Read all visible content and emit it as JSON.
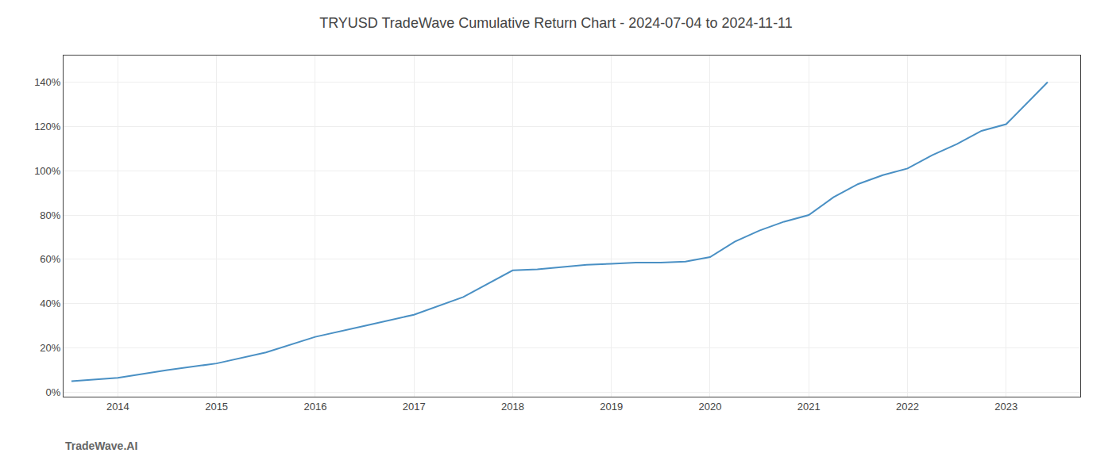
{
  "chart_data": {
    "type": "line",
    "title": "TRYUSD TradeWave Cumulative Return Chart - 2024-07-04 to 2024-11-11",
    "annotations": [
      {
        "text": "TradeWave.AI"
      }
    ],
    "x": [
      2013.53,
      2014.0,
      2014.5,
      2015.0,
      2015.5,
      2016.0,
      2016.5,
      2017.0,
      2017.5,
      2018.0,
      2018.25,
      2018.5,
      2018.75,
      2019.0,
      2019.25,
      2019.5,
      2019.75,
      2020.0,
      2020.25,
      2020.5,
      2020.75,
      2021.0,
      2021.25,
      2021.5,
      2021.75,
      2022.0,
      2022.25,
      2022.5,
      2022.75,
      2023.0,
      2023.42
    ],
    "values": [
      0.05,
      0.065,
      0.1,
      0.13,
      0.18,
      0.25,
      0.3,
      0.35,
      0.43,
      0.55,
      0.555,
      0.565,
      0.575,
      0.58,
      0.585,
      0.585,
      0.59,
      0.61,
      0.68,
      0.73,
      0.77,
      0.8,
      0.88,
      0.94,
      0.98,
      1.01,
      1.07,
      1.12,
      1.18,
      1.21,
      1.4
    ],
    "color": "#4a90c4",
    "xlim": [
      2013.45,
      2023.75
    ],
    "xticks": [
      2014,
      2015,
      2016,
      2017,
      2018,
      2019,
      2020,
      2021,
      2022,
      2023
    ],
    "ylim": [
      -0.02,
      1.52
    ],
    "yticks": [
      {
        "value": 0.0,
        "label": "0%"
      },
      {
        "value": 0.2,
        "label": "20%"
      },
      {
        "value": 0.4,
        "label": "40%"
      },
      {
        "value": 0.6,
        "label": "60%"
      },
      {
        "value": 0.8,
        "label": "80%"
      },
      {
        "value": 1.0,
        "label": "100%"
      },
      {
        "value": 1.2,
        "label": "120%"
      },
      {
        "value": 1.4,
        "label": "140%"
      }
    ],
    "grid": true
  }
}
